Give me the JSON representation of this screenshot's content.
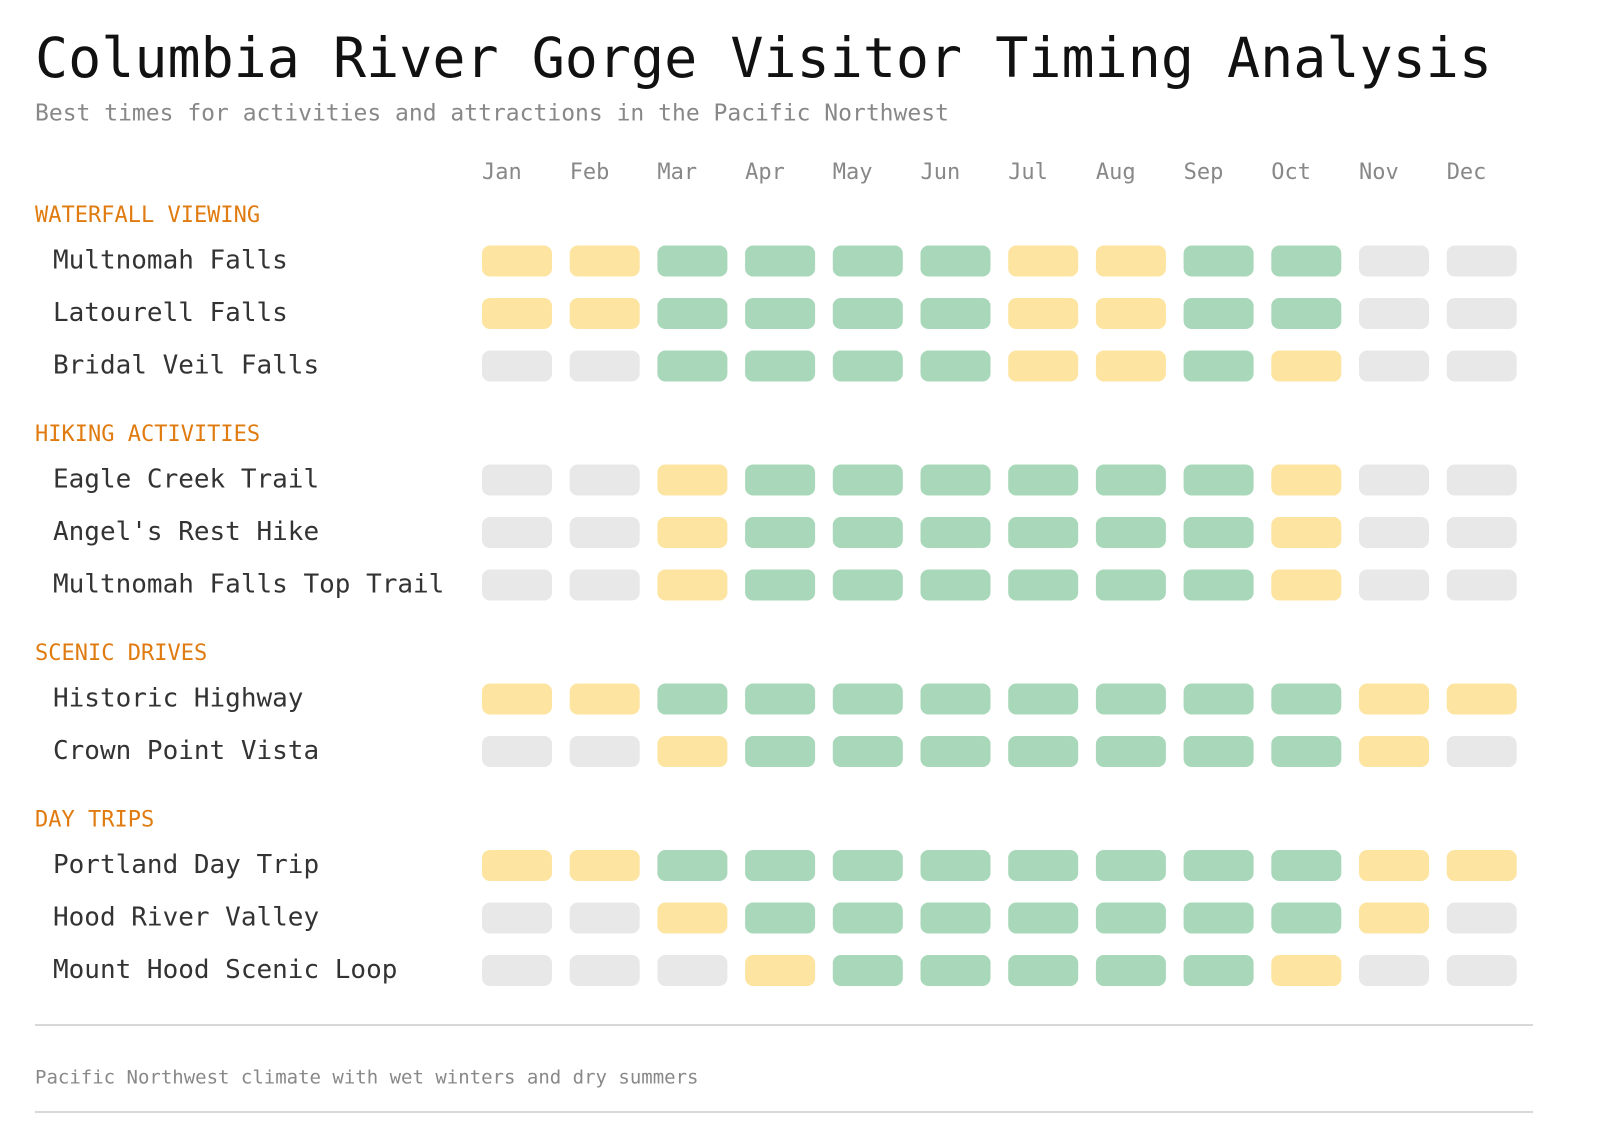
{
  "header": {
    "title": "Columbia River Gorge Visitor Timing Analysis",
    "subtitle": "Best times for activities and attractions in the Pacific Northwest"
  },
  "months": [
    "Jan",
    "Feb",
    "Mar",
    "Apr",
    "May",
    "Jun",
    "Jul",
    "Aug",
    "Sep",
    "Oct",
    "Nov",
    "Dec"
  ],
  "palette": [
    "#e8e8e8",
    "#fde4a0",
    "#a8d8b9"
  ],
  "sections": [
    {
      "title": "WATERFALL VIEWING",
      "rows": [
        {
          "label": "Multnomah Falls",
          "cells": [
            1,
            1,
            2,
            2,
            2,
            2,
            1,
            1,
            2,
            2,
            0,
            0
          ]
        },
        {
          "label": "Latourell Falls",
          "cells": [
            1,
            1,
            2,
            2,
            2,
            2,
            1,
            1,
            2,
            2,
            0,
            0
          ]
        },
        {
          "label": "Bridal Veil Falls",
          "cells": [
            0,
            0,
            2,
            2,
            2,
            2,
            1,
            1,
            2,
            1,
            0,
            0
          ]
        }
      ]
    },
    {
      "title": "HIKING ACTIVITIES",
      "rows": [
        {
          "label": "Eagle Creek Trail",
          "cells": [
            0,
            0,
            1,
            2,
            2,
            2,
            2,
            2,
            2,
            1,
            0,
            0
          ]
        },
        {
          "label": "Angel's Rest Hike",
          "cells": [
            0,
            0,
            1,
            2,
            2,
            2,
            2,
            2,
            2,
            1,
            0,
            0
          ]
        },
        {
          "label": "Multnomah Falls Top Trail",
          "cells": [
            0,
            0,
            1,
            2,
            2,
            2,
            2,
            2,
            2,
            1,
            0,
            0
          ]
        }
      ]
    },
    {
      "title": "SCENIC DRIVES",
      "rows": [
        {
          "label": "Historic Highway",
          "cells": [
            1,
            1,
            2,
            2,
            2,
            2,
            2,
            2,
            2,
            2,
            1,
            1
          ]
        },
        {
          "label": "Crown Point Vista",
          "cells": [
            0,
            0,
            1,
            2,
            2,
            2,
            2,
            2,
            2,
            2,
            1,
            0
          ]
        }
      ]
    },
    {
      "title": "DAY TRIPS",
      "rows": [
        {
          "label": "Portland Day Trip",
          "cells": [
            1,
            1,
            2,
            2,
            2,
            2,
            2,
            2,
            2,
            2,
            1,
            1
          ]
        },
        {
          "label": "Hood River Valley",
          "cells": [
            0,
            0,
            1,
            2,
            2,
            2,
            2,
            2,
            2,
            2,
            1,
            0
          ]
        },
        {
          "label": "Mount Hood Scenic Loop",
          "cells": [
            0,
            0,
            0,
            1,
            2,
            2,
            2,
            2,
            2,
            1,
            0,
            0
          ]
        }
      ]
    }
  ],
  "footer": {
    "note": "Pacific Northwest climate with wet winters and dry summers"
  }
}
